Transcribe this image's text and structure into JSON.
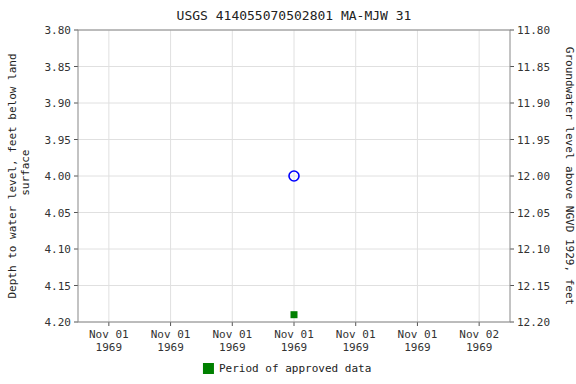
{
  "chart_data": {
    "type": "scatter",
    "title": "USGS 414055070502801 MA-MJW   31",
    "y_label": "Depth to water level, feet below land\n surface",
    "y2_label": "Groundwater level above NGVD 1929, feet",
    "categories": [
      "Nov 01\n1969",
      "Nov 01\n1969",
      "Nov 01\n1969",
      "Nov 01\n1969",
      "Nov 01\n1969",
      "Nov 01\n1969",
      "Nov 02\n1969"
    ],
    "series": [
      {
        "color": "blue",
        "marker": "circle",
        "values": [
          null,
          null,
          null,
          4.0,
          null,
          null,
          null
        ]
      },
      {
        "name": "Period of approved data",
        "color": "green",
        "marker": "square",
        "values": [
          null,
          null,
          null,
          4.19,
          null,
          null,
          null
        ]
      }
    ],
    "ylim": [
      4.2,
      3.8
    ],
    "yticks": [
      {
        "value": 3.8,
        "label": "3.80"
      },
      {
        "value": 3.85,
        "label": "3.85"
      },
      {
        "value": 3.9,
        "label": "3.90"
      },
      {
        "value": 3.95,
        "label": "3.95"
      },
      {
        "value": 4.0,
        "label": "4.00"
      },
      {
        "value": 4.05,
        "label": "4.05"
      },
      {
        "value": 4.1,
        "label": "4.10"
      },
      {
        "value": 4.15,
        "label": "4.15"
      },
      {
        "value": 4.2,
        "label": "4.20"
      }
    ],
    "y2lim": [
      12.2,
      11.8
    ],
    "y2ticks": [
      {
        "value": 12.2,
        "label": "12.20"
      },
      {
        "value": 12.15,
        "label": "12.15"
      },
      {
        "value": 12.1,
        "label": "12.10"
      },
      {
        "value": 12.05,
        "label": "12.05"
      },
      {
        "value": 12.0,
        "label": "12.00"
      },
      {
        "value": 11.95,
        "label": "11.95"
      },
      {
        "value": 11.9,
        "label": "11.90"
      },
      {
        "value": 11.85,
        "label": "11.85"
      },
      {
        "value": 11.8,
        "label": "11.80"
      }
    ],
    "grid": true,
    "legend": "bottom"
  }
}
